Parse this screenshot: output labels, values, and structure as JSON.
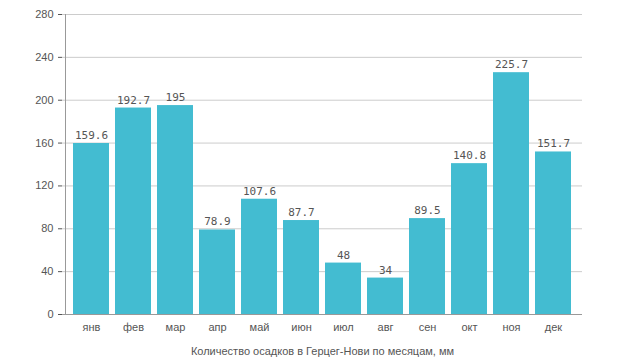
{
  "chart_data": {
    "type": "bar",
    "x_label": "Количество осадков в Герцег-Нови по месяцам, мм",
    "categories": [
      "янв",
      "фев",
      "мар",
      "апр",
      "май",
      "июн",
      "июл",
      "авг",
      "сен",
      "окт",
      "ноя",
      "дек"
    ],
    "values": [
      159.6,
      192.7,
      195,
      78.9,
      107.6,
      87.7,
      48,
      34,
      89.5,
      140.8,
      225.7,
      151.7
    ],
    "color": "#43bcd1",
    "ylim": [
      0,
      280
    ],
    "yticks": [
      0,
      40,
      80,
      120,
      160,
      200,
      240,
      280
    ],
    "grid": true,
    "data_labels": true
  }
}
